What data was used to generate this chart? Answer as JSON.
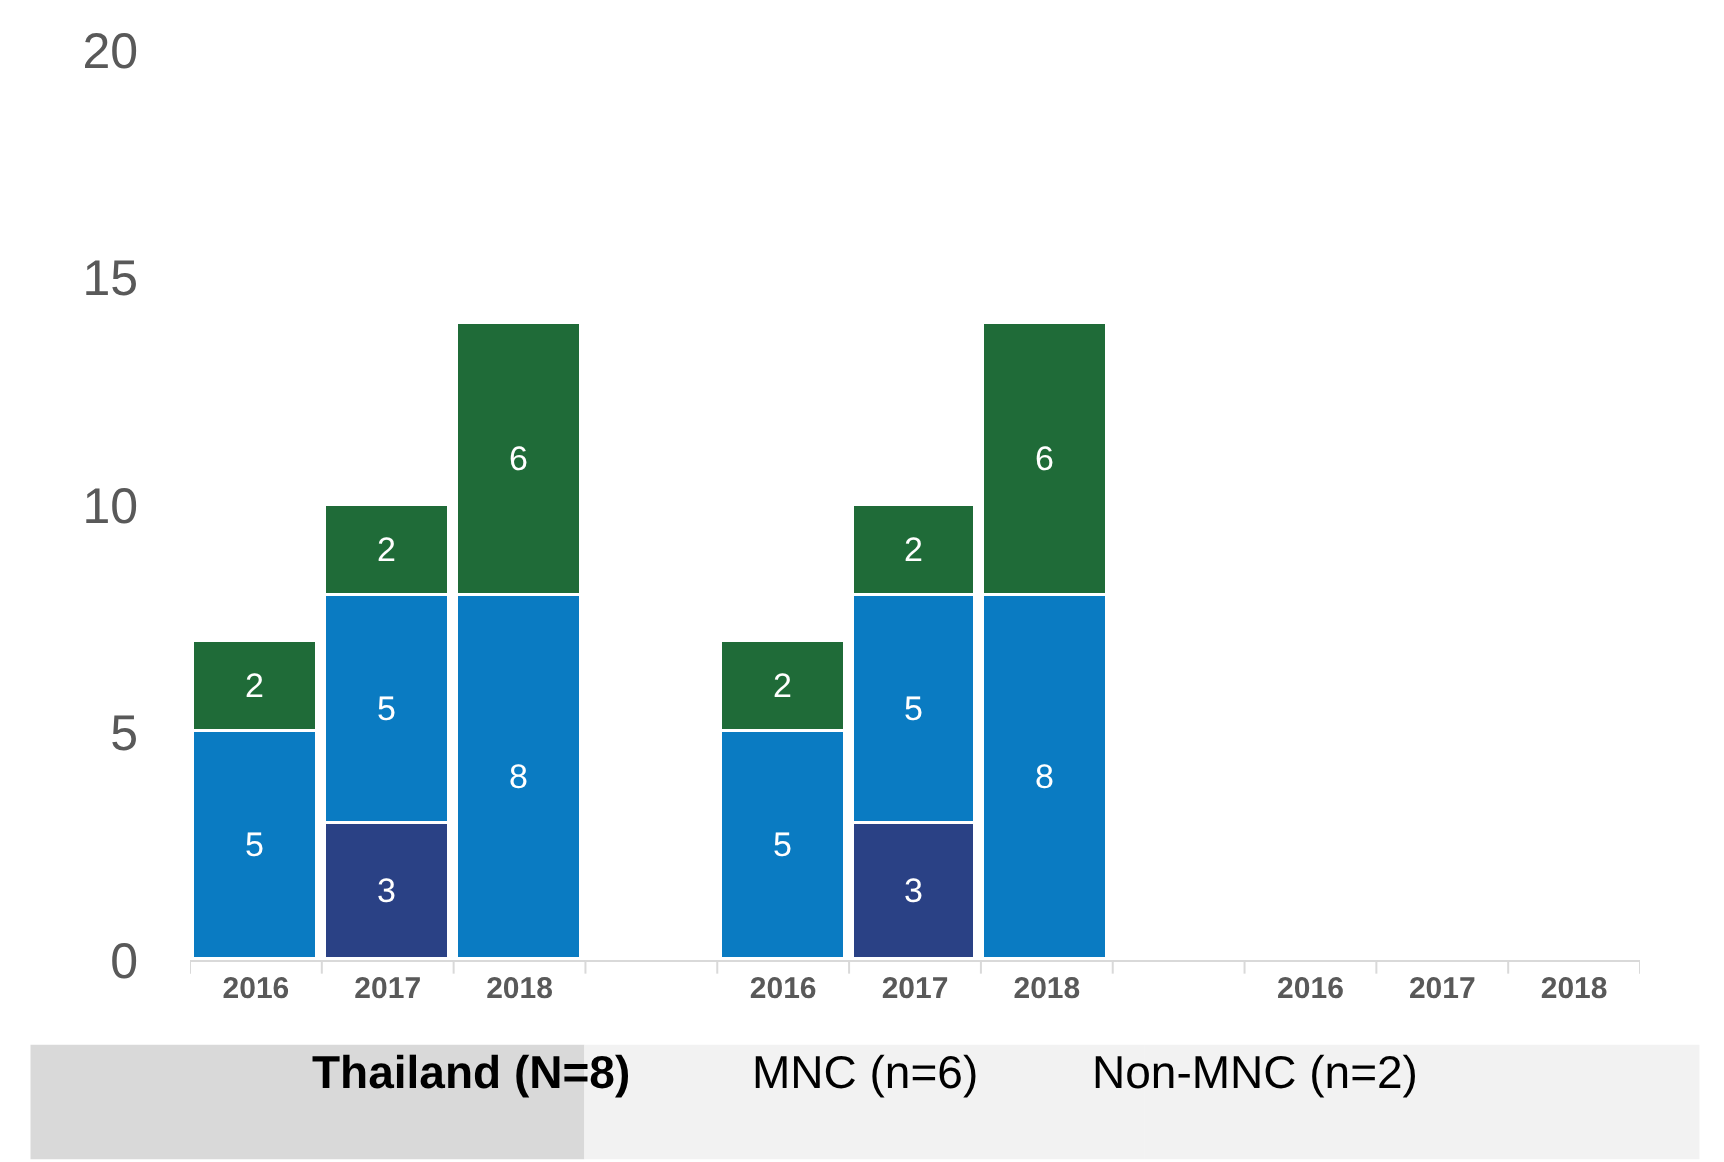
{
  "chart_data": {
    "type": "bar",
    "stacked": true,
    "categories": [
      "2016",
      "2017",
      "2018",
      "2016",
      "2017",
      "2018",
      "2016",
      "2017",
      "2018"
    ],
    "series": [
      {
        "color": "#2a4185",
        "values": [
          null,
          3,
          null,
          null,
          3,
          null,
          null,
          null,
          null
        ],
        "value_labels": [
          null,
          "3",
          null,
          null,
          "3",
          null,
          null,
          null,
          null
        ]
      },
      {
        "color": "#0a7bc2",
        "values": [
          5,
          5,
          8,
          5,
          5,
          8,
          null,
          null,
          null
        ],
        "value_labels": [
          "5",
          "5",
          "8",
          "5",
          "5",
          "8",
          null,
          null,
          null
        ]
      },
      {
        "color": "#1f6b38",
        "values": [
          2,
          2,
          6,
          2,
          2,
          6,
          null,
          null,
          null
        ],
        "value_labels": [
          "2",
          "2",
          "6",
          "2",
          "2",
          "6",
          null,
          null,
          null
        ]
      }
    ],
    "ylim": [
      0,
      20
    ],
    "yticks": [
      0,
      5,
      10,
      15,
      20
    ],
    "grid": false,
    "legend": false,
    "annotations": [
      "Thailand (N=8)",
      "MNC (n=6)",
      "Non-MNC (n=2)"
    ]
  }
}
